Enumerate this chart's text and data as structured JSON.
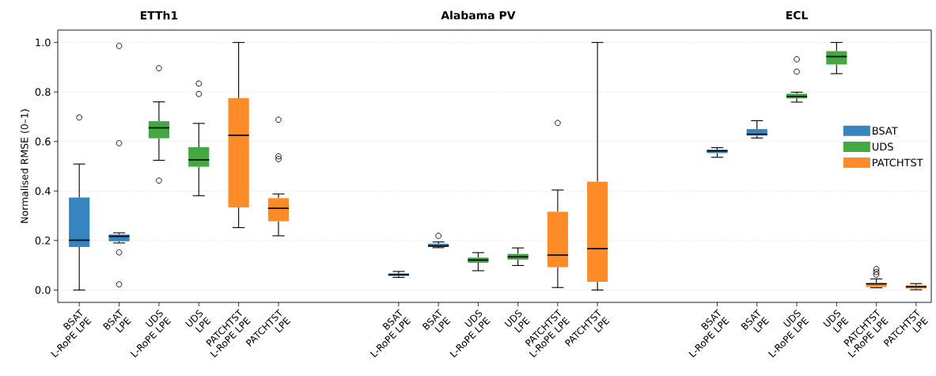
{
  "chart_data": [
    {
      "type": "box",
      "title": "ETTh1",
      "ylabel": "Normalised RMSE (0–1)",
      "categories": [
        "BSAT\nL-RoPE LPE",
        "BSAT\nLPE",
        "UDS\nL-RoPE LPE",
        "UDS\nLPE",
        "PATCHTST\nL-RoPE LPE",
        "PATCHTST\nLPE"
      ],
      "series": [
        {
          "color": "#3584bd",
          "boxes": [
            {
              "low": 0.0,
              "q1": 0.174,
              "median": 0.201,
              "q3": 0.374,
              "high": 0.509,
              "outliers": [
                0.697
              ]
            },
            {
              "low": 0.19,
              "q1": 0.197,
              "median": 0.217,
              "q3": 0.224,
              "high": 0.231,
              "outliers": [
                0.986,
                0.593,
                0.152,
                0.023
              ]
            },
            null,
            null,
            null,
            null
          ]
        },
        {
          "color": "#42a942",
          "boxes": [
            null,
            null,
            {
              "low": 0.524,
              "q1": 0.613,
              "median": 0.655,
              "q3": 0.682,
              "high": 0.76,
              "outliers": [
                0.896,
                0.442
              ]
            },
            {
              "low": 0.381,
              "q1": 0.498,
              "median": 0.526,
              "q3": 0.577,
              "high": 0.673,
              "outliers": [
                0.834,
                0.792
              ]
            },
            null,
            null
          ]
        },
        {
          "color": "#fd8c28",
          "boxes": [
            null,
            null,
            null,
            null,
            {
              "low": 0.252,
              "q1": 0.334,
              "median": 0.625,
              "q3": 0.775,
              "high": 1.0
            },
            {
              "low": 0.219,
              "q1": 0.278,
              "median": 0.33,
              "q3": 0.371,
              "high": 0.388,
              "outliers": [
                0.688,
                0.54,
                0.529
              ]
            }
          ]
        }
      ],
      "ylim": [
        -0.05,
        1.05
      ],
      "yticks": [
        {
          "value": 0,
          "label": "0.0"
        },
        {
          "value": 0.2,
          "label": "0.2"
        },
        {
          "value": 0.4,
          "label": "0.4"
        },
        {
          "value": 0.6,
          "label": "0.6"
        },
        {
          "value": 0.8,
          "label": "0.8"
        },
        {
          "value": 1,
          "label": "1.0"
        }
      ],
      "grid": "y"
    },
    {
      "type": "box",
      "title": "Alabama PV",
      "categories": [
        "BSAT\nL-RoPE LPE",
        "BSAT\nLPE",
        "UDS\nL-RoPE LPE",
        "UDS\nLPE",
        "PATCHTST\nL-RoPE LPE",
        "PATCHTST\nLPE"
      ],
      "series": [
        {
          "color": "#3584bd",
          "boxes": [
            {
              "low": 0.051,
              "q1": 0.057,
              "median": 0.062,
              "q3": 0.067,
              "high": 0.075
            },
            {
              "low": 0.171,
              "q1": 0.174,
              "median": 0.178,
              "q3": 0.187,
              "high": 0.194,
              "outliers": [
                0.219
              ]
            },
            null,
            null,
            null,
            null
          ]
        },
        {
          "color": "#42a942",
          "boxes": [
            null,
            null,
            {
              "low": 0.078,
              "q1": 0.11,
              "median": 0.121,
              "q3": 0.131,
              "high": 0.151
            },
            {
              "low": 0.099,
              "q1": 0.123,
              "median": 0.134,
              "q3": 0.146,
              "high": 0.17
            },
            null,
            null
          ]
        },
        {
          "color": "#fd8c28",
          "boxes": [
            null,
            null,
            null,
            null,
            {
              "low": 0.01,
              "q1": 0.092,
              "median": 0.141,
              "q3": 0.316,
              "high": 0.404,
              "outliers": [
                0.675
              ]
            },
            {
              "low": 0.0,
              "q1": 0.033,
              "median": 0.167,
              "q3": 0.438,
              "high": 1.0
            }
          ]
        }
      ],
      "ylim": [
        -0.05,
        1.05
      ],
      "yticks": [
        0,
        0.2,
        0.4,
        0.6,
        0.8,
        1
      ],
      "grid": "y",
      "tick_labels": "x"
    },
    {
      "type": "box",
      "title": "ECL",
      "categories": [
        "BSAT\nL-RoPE LPE",
        "BSAT\nLPE",
        "UDS\nL-RoPE LPE",
        "UDS\nLPE",
        "PATCHTST\nL-RoPE LPE",
        "PATCHTST\nLPE"
      ],
      "series": [
        {
          "name": "BSAT",
          "color": "#3584bd",
          "boxes": [
            {
              "low": 0.536,
              "q1": 0.553,
              "median": 0.562,
              "q3": 0.567,
              "high": 0.575
            },
            {
              "low": 0.614,
              "q1": 0.624,
              "median": 0.629,
              "q3": 0.65,
              "high": 0.684
            },
            null,
            null,
            null,
            null
          ]
        },
        {
          "name": "UDS",
          "color": "#42a942",
          "boxes": [
            null,
            null,
            {
              "low": 0.759,
              "q1": 0.774,
              "median": 0.782,
              "q3": 0.793,
              "high": 0.799,
              "outliers": [
                0.882,
                0.932
              ]
            },
            {
              "low": 0.874,
              "q1": 0.911,
              "median": 0.943,
              "q3": 0.965,
              "high": 1.0
            },
            null,
            null
          ]
        },
        {
          "name": "PATCHTST",
          "color": "#fd8c28",
          "boxes": [
            null,
            null,
            null,
            null,
            {
              "low": 0.009,
              "q1": 0.012,
              "median": 0.025,
              "q3": 0.028,
              "high": 0.045,
              "outliers": [
                0.062,
                0.073,
                0.085
              ]
            },
            {
              "low": 0.001,
              "q1": 0.006,
              "median": 0.013,
              "q3": 0.019,
              "high": 0.026
            }
          ]
        }
      ],
      "ylim": [
        -0.05,
        1.05
      ],
      "yticks": [
        0,
        0.2,
        0.4,
        0.6,
        0.8,
        1
      ],
      "grid": "y",
      "tick_labels": "x",
      "legend": "right"
    }
  ]
}
